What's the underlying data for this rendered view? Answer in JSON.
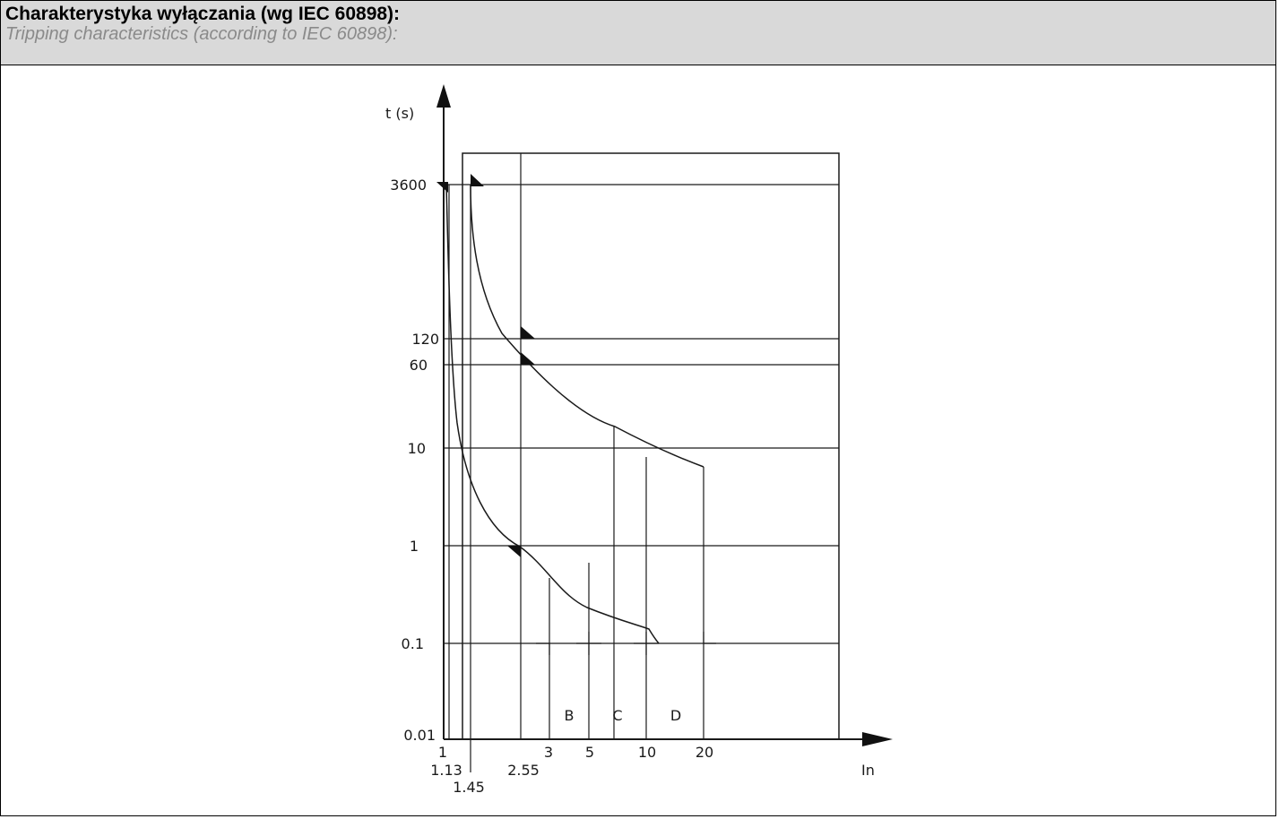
{
  "header": {
    "title": "Charakterystyka wyłączania (wg IEC 60898):",
    "subtitle": "Tripping characteristics (according to IEC 60898):"
  },
  "chart_data": {
    "type": "line",
    "ylabel": "t (s)",
    "xlabel": "In",
    "y_scale": "log",
    "y_ticks": [
      "3600",
      "120",
      "60",
      "10",
      "1",
      "0.1",
      "0.01"
    ],
    "x_ticks": [
      "1",
      "1.13",
      "1.45",
      "2.55",
      "3",
      "5",
      "10",
      "20"
    ],
    "regions": [
      "B",
      "C",
      "D"
    ],
    "series": [
      {
        "points": [
          [
            1.13,
            3600
          ],
          [
            1.2,
            120
          ],
          [
            1.45,
            10
          ],
          [
            2.0,
            2.0
          ],
          [
            2.55,
            1
          ],
          [
            3,
            0.55
          ],
          [
            5,
            0.2
          ],
          [
            10,
            0.13
          ],
          [
            12,
            0.1
          ]
        ]
      },
      {
        "points": [
          [
            1.45,
            3600
          ],
          [
            1.6,
            600
          ],
          [
            2.55,
            60
          ],
          [
            5,
            18
          ],
          [
            10,
            9
          ],
          [
            20,
            6
          ]
        ]
      }
    ],
    "grid": true
  }
}
